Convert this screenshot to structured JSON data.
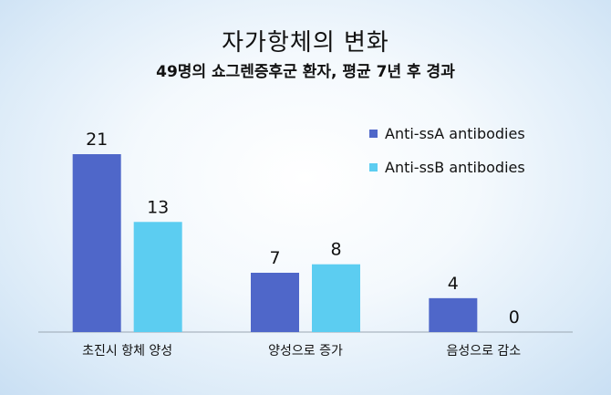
{
  "chart_data": {
    "type": "bar",
    "title": "자가항체의 변화",
    "subtitle": "49명의 쇼그렌증후군 환자, 평균 7년 후 경과",
    "categories": [
      "초진시 항체 양성",
      "양성으로 증가",
      "음성으로 감소"
    ],
    "series": [
      {
        "name": "Anti-ssA antibodies",
        "values": [
          21,
          7,
          4
        ],
        "color": "#4f67c9"
      },
      {
        "name": "Anti-ssB antibodies",
        "values": [
          13,
          8,
          0
        ],
        "color": "#5ccdf1"
      }
    ],
    "ylim": [
      0,
      21
    ],
    "legend_position": "top-right",
    "grid": false
  }
}
